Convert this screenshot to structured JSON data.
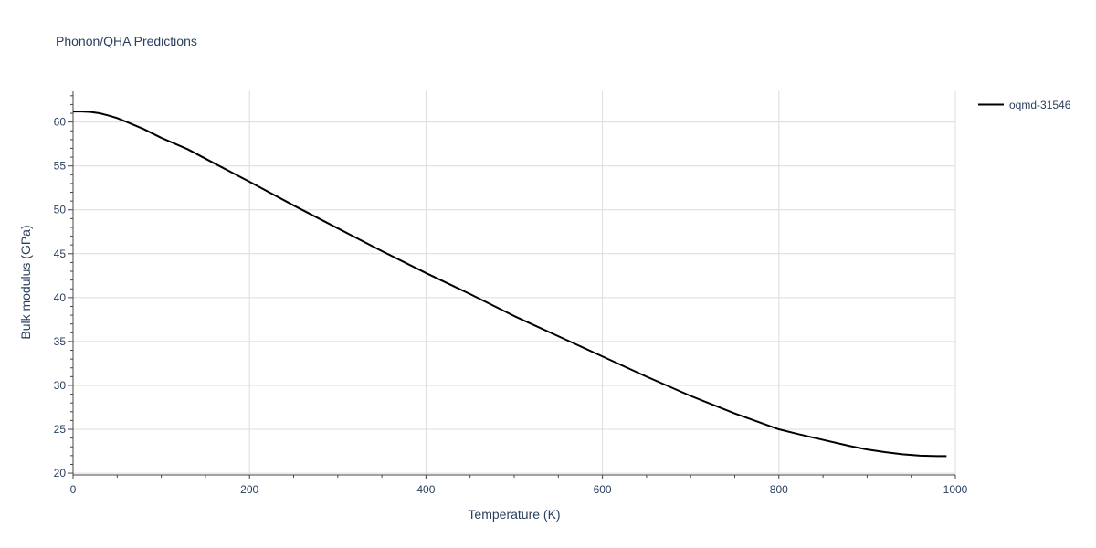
{
  "chart_data": {
    "type": "line",
    "title": "Phonon/QHA Predictions",
    "xlabel": "Temperature (K)",
    "ylabel": "Bulk modulus (GPa)",
    "xlim": [
      0,
      1000
    ],
    "ylim": [
      19.8,
      63.5
    ],
    "x_ticks": [
      0,
      200,
      400,
      600,
      800,
      1000
    ],
    "y_ticks": [
      20,
      25,
      30,
      35,
      40,
      45,
      50,
      55,
      60
    ],
    "grid": true,
    "legend_position": "top-right",
    "series": [
      {
        "name": "oqmd-31546",
        "color": "#000000",
        "x": [
          0,
          10,
          20,
          30,
          40,
          50,
          60,
          80,
          100,
          130,
          160,
          200,
          250,
          300,
          350,
          400,
          450,
          500,
          550,
          600,
          650,
          700,
          750,
          800,
          820,
          850,
          880,
          900,
          920,
          940,
          960,
          980,
          990
        ],
        "y": [
          61.2,
          61.2,
          61.15,
          61.0,
          60.75,
          60.45,
          60.05,
          59.2,
          58.2,
          56.9,
          55.3,
          53.2,
          50.5,
          47.9,
          45.3,
          42.8,
          40.4,
          37.9,
          35.6,
          33.3,
          31.0,
          28.8,
          26.8,
          25.0,
          24.5,
          23.8,
          23.1,
          22.7,
          22.4,
          22.15,
          22.0,
          21.95,
          21.95
        ]
      }
    ]
  }
}
